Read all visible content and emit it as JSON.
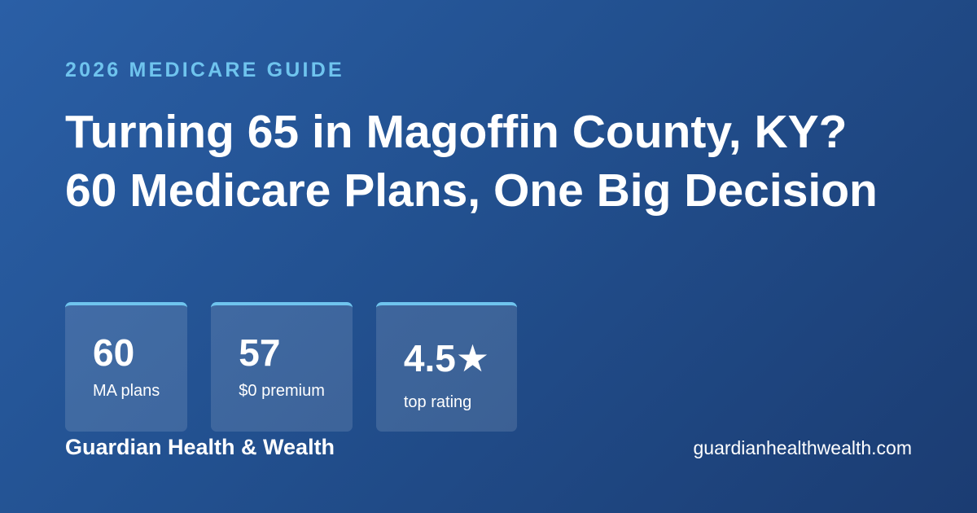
{
  "eyebrow": "2026 MEDICARE GUIDE",
  "title": "Turning 65 in Magoffin County, KY? 60 Medicare Plans, One Big Decision",
  "stats": [
    {
      "value": "60",
      "label": "MA plans"
    },
    {
      "value": "57",
      "label": "$0 premium"
    },
    {
      "value": "4.5★",
      "label": "top rating"
    }
  ],
  "brand": "Guardian Health & Wealth",
  "url": "guardianhealthwealth.com"
}
